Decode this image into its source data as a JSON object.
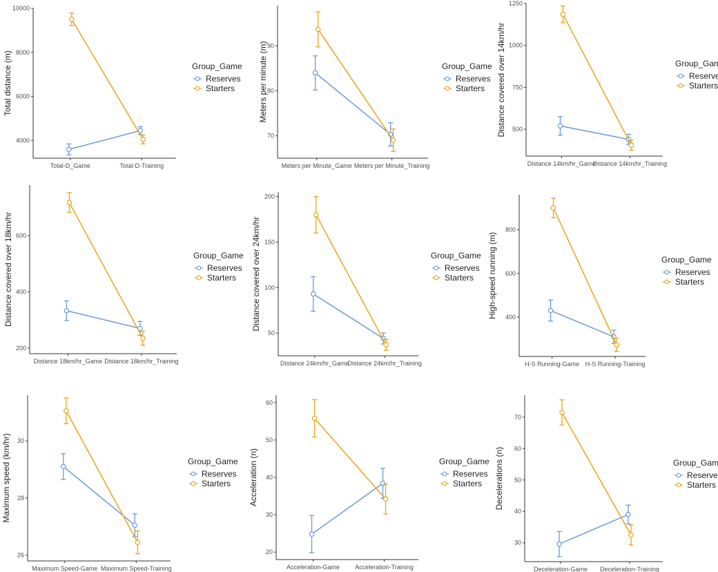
{
  "figure": {
    "colors": {
      "reserves": "#6a9bd8",
      "starters": "#e8a317",
      "axis": "#333333"
    }
  },
  "chart_data": [
    {
      "type": "line",
      "ylabel": "Total distance (m)",
      "categories": [
        "Total-D_Game",
        "Total-D-Training"
      ],
      "yticks": [
        4000,
        6000,
        8000,
        10000
      ],
      "ylim": [
        3200,
        10000
      ],
      "legend": {
        "title": "Group_Game",
        "placement": "right"
      },
      "series": [
        {
          "name": "Reserves",
          "values": [
            3600,
            4450
          ],
          "err": [
            250,
            180
          ]
        },
        {
          "name": "Starters",
          "values": [
            9500,
            4050
          ],
          "err": [
            280,
            200
          ]
        }
      ]
    },
    {
      "type": "line",
      "ylabel": "Meters per minute (m)",
      "categories": [
        "Meters per Minute_Game",
        "Meters per Minute_Training"
      ],
      "yticks": [
        70,
        80,
        90
      ],
      "ylim": [
        65,
        99
      ],
      "legend": {
        "title": "Group_Game",
        "placement": "right"
      },
      "series": [
        {
          "name": "Reserves",
          "values": [
            84,
            70.3
          ],
          "err": [
            3.8,
            2.6
          ]
        },
        {
          "name": "Starters",
          "values": [
            93.7,
            69
          ],
          "err": [
            3.9,
            2.5
          ]
        }
      ]
    },
    {
      "type": "line",
      "ylabel": "Distance covered over 14km/hr",
      "categories": [
        "Distance 14km/hr_Game",
        "Distance 14km/hr_Training"
      ],
      "yticks": [
        500,
        750,
        1000,
        1250
      ],
      "ylim": [
        340,
        1250
      ],
      "legend": {
        "title": "Group_Game",
        "placement": "right"
      },
      "series": [
        {
          "name": "Reserves",
          "values": [
            520,
            440
          ],
          "err": [
            55,
            30
          ]
        },
        {
          "name": "Starters",
          "values": [
            1185,
            405
          ],
          "err": [
            50,
            30
          ]
        }
      ]
    },
    {
      "type": "line",
      "ylabel": "Distance covered over 18km/hr",
      "categories": [
        "Distance 18km/hr_Game",
        "Distance 18km/hr_Training"
      ],
      "yticks": [
        200,
        400,
        600
      ],
      "ylim": [
        180,
        780
      ],
      "legend": {
        "title": "Group_Game",
        "placement": "right"
      },
      "series": [
        {
          "name": "Reserves",
          "values": [
            333,
            270
          ],
          "err": [
            35,
            25
          ]
        },
        {
          "name": "Starters",
          "values": [
            718,
            235
          ],
          "err": [
            35,
            25
          ]
        }
      ]
    },
    {
      "type": "line",
      "ylabel": "Distance covered over 24km/hr",
      "categories": [
        "Distance 24km/hr_Game",
        "Distance 24km/hr_Training"
      ],
      "yticks": [
        50,
        100,
        150,
        200
      ],
      "ylim": [
        25,
        205
      ],
      "legend": {
        "title": "Group_Game",
        "placement": "right"
      },
      "series": [
        {
          "name": "Reserves",
          "values": [
            93,
            44
          ],
          "err": [
            19,
            6
          ]
        },
        {
          "name": "Starters",
          "values": [
            180,
            37
          ],
          "err": [
            20,
            6
          ]
        }
      ]
    },
    {
      "type": "line",
      "ylabel": "High-speed running (m)",
      "categories": [
        "H-S Running-Game",
        "H-S Running-Training"
      ],
      "yticks": [
        400,
        600,
        800
      ],
      "ylim": [
        220,
        960
      ],
      "legend": {
        "title": "Group_Game",
        "placement": "right"
      },
      "series": [
        {
          "name": "Reserves",
          "values": [
            430,
            310
          ],
          "err": [
            48,
            30
          ]
        },
        {
          "name": "Starters",
          "values": [
            900,
            273
          ],
          "err": [
            45,
            30
          ]
        }
      ]
    },
    {
      "type": "line",
      "ylabel": "Maximum speed (km/hr)",
      "categories": [
        "Maximum Speed-Game",
        "Maximum Speed-Training"
      ],
      "yticks": [
        26,
        28,
        30
      ],
      "ylim": [
        25.8,
        31.6
      ],
      "legend": {
        "title": "Group_Game",
        "placement": "right"
      },
      "series": [
        {
          "name": "Reserves",
          "values": [
            29.1,
            27.05
          ],
          "err": [
            0.45,
            0.4
          ]
        },
        {
          "name": "Starters",
          "values": [
            31.05,
            26.45
          ],
          "err": [
            0.45,
            0.4
          ]
        }
      ]
    },
    {
      "type": "line",
      "ylabel": "Acceleration (n)",
      "categories": [
        "Acceleration-Game",
        "Acceleration-Training"
      ],
      "yticks": [
        20,
        30,
        40,
        50,
        60
      ],
      "ylim": [
        18,
        62
      ],
      "legend": {
        "title": "Group_Game",
        "placement": "right"
      },
      "series": [
        {
          "name": "Reserves",
          "values": [
            24.8,
            38.4
          ],
          "err": [
            5,
            4
          ]
        },
        {
          "name": "Starters",
          "values": [
            55.8,
            34.2
          ],
          "err": [
            5,
            4
          ]
        }
      ]
    },
    {
      "type": "line",
      "ylabel": "Decelerations (n)",
      "categories": [
        "Deceleration-Game",
        "Deceleration-Training"
      ],
      "yticks": [
        30,
        40,
        50,
        60,
        70
      ],
      "ylim": [
        24,
        77
      ],
      "legend": {
        "title": "Group_Game",
        "placement": "right"
      },
      "series": [
        {
          "name": "Reserves",
          "values": [
            29.6,
            39
          ],
          "err": [
            4,
            3
          ]
        },
        {
          "name": "Starters",
          "values": [
            71.5,
            32.5
          ],
          "err": [
            4,
            3.2
          ]
        }
      ]
    }
  ]
}
